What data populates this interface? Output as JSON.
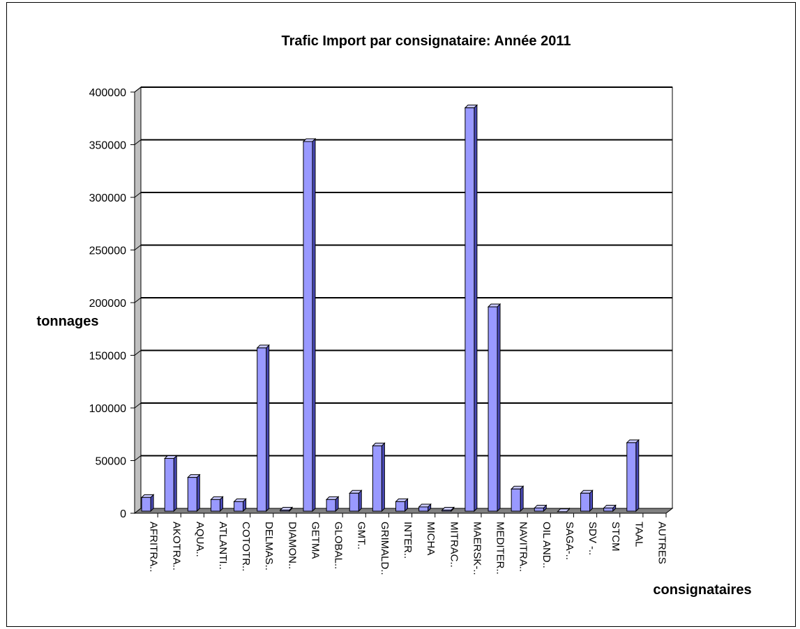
{
  "chart_data": {
    "type": "bar",
    "title": "Trafic Import par consignataire: Année 2011",
    "xlabel": "consignataires",
    "ylabel": "tonnages",
    "ylim": [
      0,
      400000
    ],
    "yticks": [
      "0",
      "50000",
      "100000",
      "150000",
      "200000",
      "250000",
      "300000",
      "350000",
      "400000"
    ],
    "grid": true,
    "categories": [
      "AFRITRA..",
      "AKOTRA..",
      "AQUA..",
      "ATLANTI..",
      "COTOTR..",
      "DELMAS..",
      "DIAMON..",
      "GETMA",
      "GLOBAL..",
      "GMT..",
      "GRIMALD..",
      "INTER..",
      "MICHA",
      "MITRAC..",
      "MAERSK-..",
      "MEDITER..",
      "NAVITRA..",
      "OIL AND..",
      "SAGA-..",
      "SDV -..",
      "STCM",
      "TAAL",
      "AUTRES"
    ],
    "series": [
      {
        "values": [
          15000,
          52000,
          34000,
          13000,
          11000,
          157000,
          3000,
          353000,
          13000,
          19000,
          64000,
          11000,
          6000,
          3000,
          385000,
          196000,
          23000,
          5000,
          1500,
          19000,
          5000,
          67000,
          0
        ]
      }
    ],
    "colors": {
      "bar_front": "#9999ff",
      "bar_side": "#4a4ab8",
      "bar_top": "#c8c8ff",
      "floor": "#808080",
      "wall": "#c0c0c0"
    }
  }
}
